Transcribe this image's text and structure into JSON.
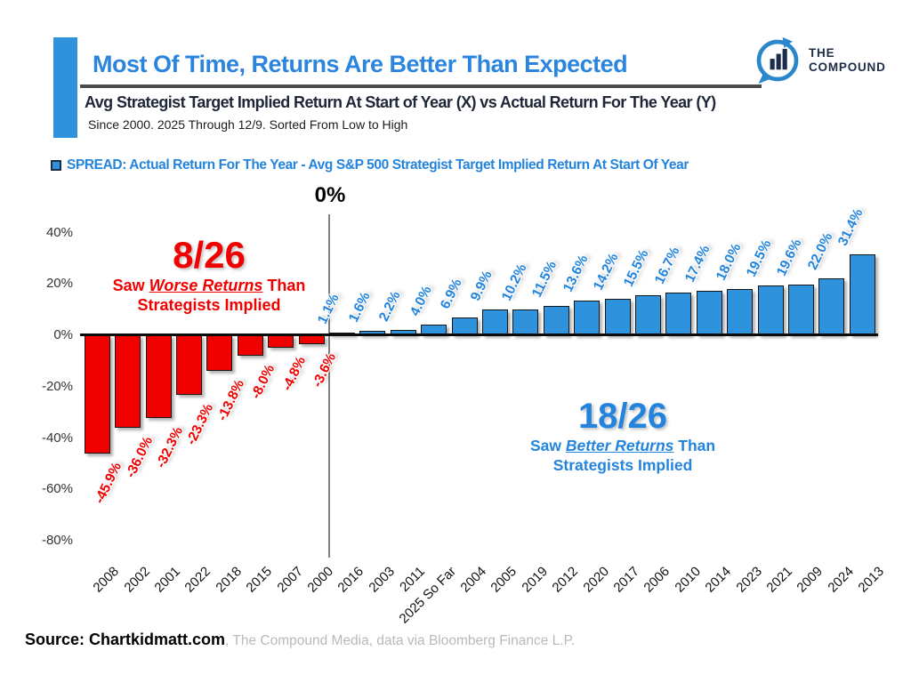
{
  "chart_data": {
    "type": "bar",
    "title": "Most Of Time, Returns Are Better Than Expected",
    "subtitle": "Avg Strategist Target Implied Return At Start of Year (X) vs Actual Return For The Year (Y)",
    "note": "Since 2000. 2025 Through 12/9. Sorted From Low to High",
    "series_label": "SPREAD: Actual Return For The Year - Avg S&P 500 Strategist Target Implied Return At Start Of Year",
    "categories": [
      "2008",
      "2002",
      "2001",
      "2022",
      "2018",
      "2015",
      "2007",
      "2000",
      "2016",
      "2003",
      "2011",
      "2025 So Far",
      "2004",
      "2005",
      "2019",
      "2012",
      "2020",
      "2017",
      "2006",
      "2010",
      "2014",
      "2023",
      "2021",
      "2009",
      "2024",
      "2013"
    ],
    "values": [
      -45.9,
      -36.0,
      -32.3,
      -23.3,
      -13.8,
      -8.0,
      -4.8,
      -3.6,
      1.1,
      1.6,
      2.2,
      4.0,
      6.9,
      9.9,
      10.2,
      11.5,
      13.6,
      14.2,
      15.5,
      16.7,
      17.4,
      18.0,
      19.5,
      19.6,
      22.0,
      31.4
    ],
    "ylim": [
      -80,
      40
    ],
    "y_tick_labels": [
      "40%",
      "20%",
      "0%",
      "-20%",
      "-40%",
      "-60%",
      "-80%"
    ],
    "zero_divider_label": "0%",
    "grid": false,
    "legend_position": "top-left",
    "colors": {
      "negative": "#f10000",
      "positive": "#2e93dc",
      "title_blue": "#2b85de",
      "navy": "#1e2637"
    },
    "annotations": {
      "worse": {
        "count": "8/26",
        "line1_prefix": "Saw ",
        "line1_em": "Worse Returns",
        "line1_suffix": " Than",
        "line2": "Strategists Implied"
      },
      "better": {
        "count": "18/26",
        "line1_prefix": "Saw ",
        "line1_em": "Better Returns",
        "line1_suffix": " Than",
        "line2": "Strategists Implied"
      }
    }
  },
  "logo": {
    "line1": "THE",
    "line2": "COMPOUND"
  },
  "source": {
    "bold": "Source: Chartkidmatt.com",
    "rest": ", The Compound Media, data via Bloomberg Finance L.P."
  }
}
